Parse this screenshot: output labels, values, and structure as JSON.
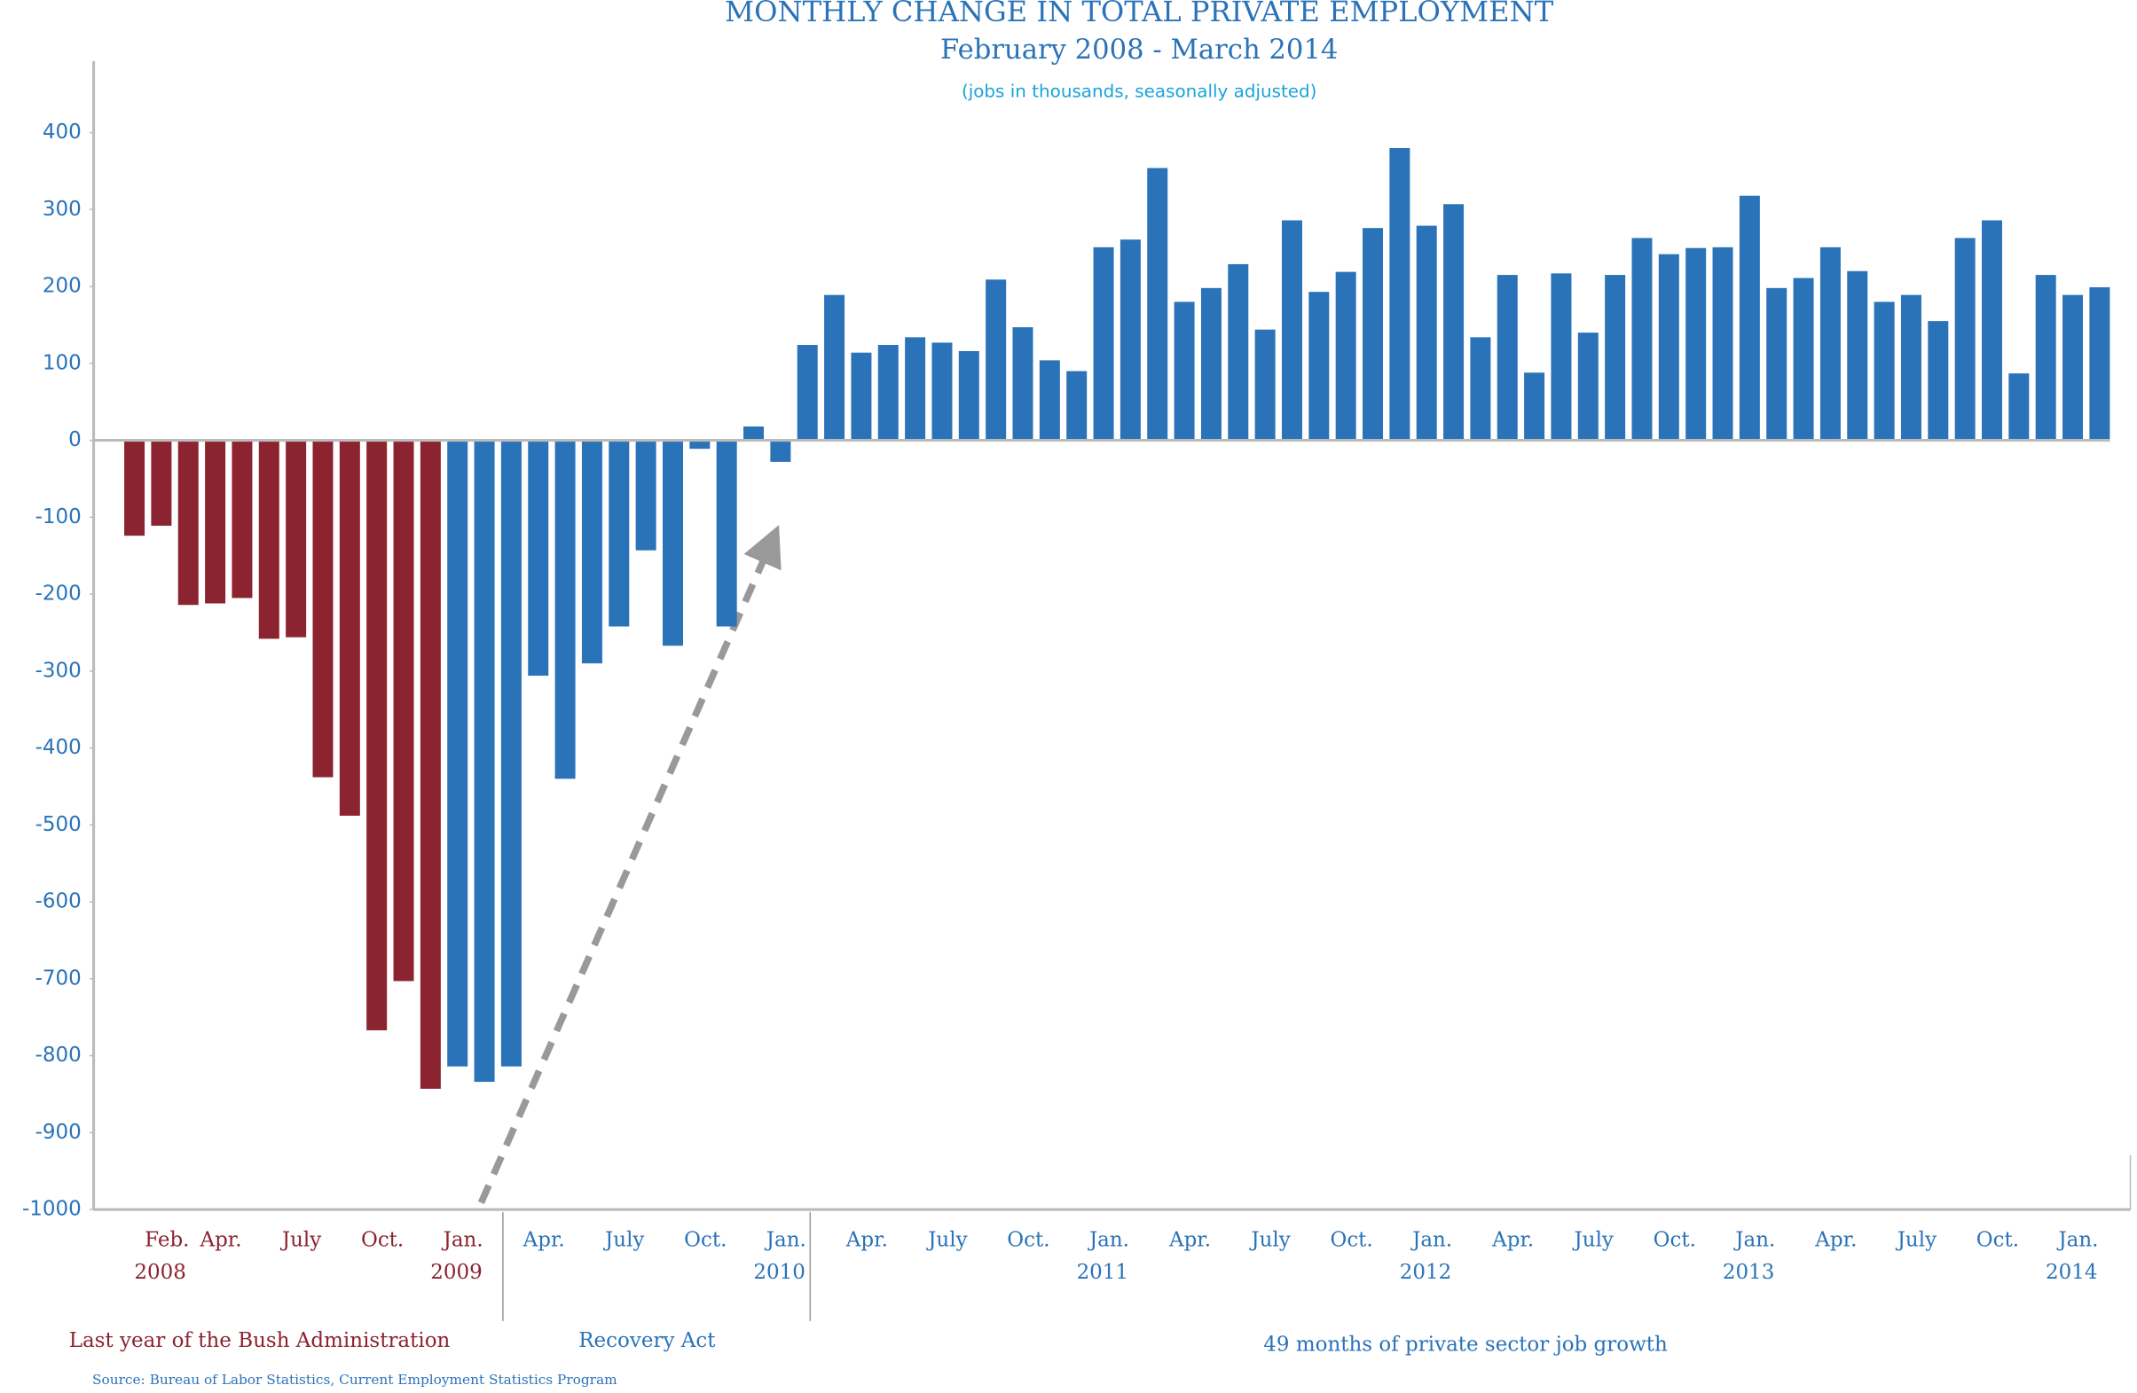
{
  "chart_data": {
    "type": "bar",
    "title": "MONTHLY CHANGE IN TOTAL PRIVATE EMPLOYMENT",
    "subtitle": "February 2008 - March 2014",
    "note": "(jobs in thousands, seasonally adjusted)",
    "categories": [
      "Feb.",
      null,
      "Apr.",
      null,
      null,
      "July",
      null,
      null,
      "Oct.",
      null,
      null,
      "Jan.",
      null,
      null,
      "Apr.",
      null,
      null,
      "July",
      null,
      null,
      "Oct.",
      null,
      null,
      "Jan.",
      null,
      null,
      "Apr.",
      null,
      null,
      "July",
      null,
      null,
      "Oct.",
      null,
      null,
      "Jan.",
      null,
      null,
      "Apr.",
      null,
      null,
      "July",
      null,
      null,
      "Oct.",
      null,
      null,
      "Jan.",
      null,
      null,
      "Apr.",
      null,
      null,
      "July",
      null,
      null,
      "Oct.",
      null,
      null,
      "Jan.",
      null,
      null,
      "Apr.",
      null,
      null,
      "July",
      null,
      null,
      "Oct.",
      null,
      null,
      "Jan.",
      null,
      null
    ],
    "category_years": [
      "2008",
      null,
      null,
      null,
      null,
      null,
      null,
      null,
      null,
      null,
      null,
      "2009",
      null,
      null,
      null,
      null,
      null,
      null,
      null,
      null,
      null,
      null,
      null,
      "2010",
      null,
      null,
      null,
      null,
      null,
      null,
      null,
      null,
      null,
      null,
      null,
      "2011",
      null,
      null,
      null,
      null,
      null,
      null,
      null,
      null,
      null,
      null,
      null,
      "2012",
      null,
      null,
      null,
      null,
      null,
      null,
      null,
      null,
      null,
      null,
      null,
      "2013",
      null,
      null,
      null,
      null,
      null,
      null,
      null,
      null,
      null,
      null,
      null,
      "2014",
      null,
      null
    ],
    "values": [
      -124,
      -111,
      -214,
      -212,
      -205,
      -258,
      -256,
      -438,
      -488,
      -767,
      -703,
      -843,
      -814,
      -834,
      -814,
      -306,
      -440,
      -290,
      -242,
      -143,
      -267,
      -11,
      -242,
      18,
      -28,
      124,
      189,
      114,
      124,
      134,
      127,
      116,
      209,
      147,
      104,
      90,
      251,
      261,
      354,
      180,
      198,
      229,
      144,
      286,
      193,
      219,
      276,
      380,
      279,
      307,
      134,
      215,
      88,
      217,
      140,
      215,
      263,
      242,
      250,
      251,
      318,
      198,
      211,
      251,
      220,
      180,
      189,
      155,
      263,
      286,
      87,
      215,
      189,
      199
    ],
    "colors": [
      "#8c2330",
      "#8c2330",
      "#8c2330",
      "#8c2330",
      "#8c2330",
      "#8c2330",
      "#8c2330",
      "#8c2330",
      "#8c2330",
      "#8c2330",
      "#8c2330",
      "#8c2330",
      "#2a73b8",
      "#2a73b8",
      "#2a73b8",
      "#2a73b8",
      "#2a73b8",
      "#2a73b8",
      "#2a73b8",
      "#2a73b8",
      "#2a73b8",
      "#2a73b8",
      "#2a73b8",
      "#2a73b8",
      "#2a73b8",
      "#2a73b8",
      "#2a73b8",
      "#2a73b8",
      "#2a73b8",
      "#2a73b8",
      "#2a73b8",
      "#2a73b8",
      "#2a73b8",
      "#2a73b8",
      "#2a73b8",
      "#2a73b8",
      "#2a73b8",
      "#2a73b8",
      "#2a73b8",
      "#2a73b8",
      "#2a73b8",
      "#2a73b8",
      "#2a73b8",
      "#2a73b8",
      "#2a73b8",
      "#2a73b8",
      "#2a73b8",
      "#2a73b8",
      "#2a73b8",
      "#2a73b8",
      "#2a73b8",
      "#2a73b8",
      "#2a73b8",
      "#2a73b8",
      "#2a73b8",
      "#2a73b8",
      "#2a73b8",
      "#2a73b8",
      "#2a73b8",
      "#2a73b8",
      "#2a73b8",
      "#2a73b8",
      "#2a73b8",
      "#2a73b8",
      "#2a73b8",
      "#2a73b8",
      "#2a73b8",
      "#2a73b8",
      "#2a73b8",
      "#2a73b8",
      "#2a73b8",
      "#2a73b8",
      "#2a73b8",
      "#2a73b8"
    ],
    "ylim": [
      -1000,
      450
    ],
    "yticks": [
      400,
      300,
      200,
      100,
      0,
      -100,
      -200,
      -300,
      -400,
      -500,
      -600,
      -700,
      -800,
      -900,
      -1000
    ],
    "annotations": [
      {
        "text": "Last year of the Bush Administration",
        "color": "#8c2330"
      },
      {
        "text": "Recovery Act",
        "color": "#2a73b8"
      },
      {
        "text": "49 months of private sector job growth",
        "color": "#2a73b8"
      }
    ],
    "source": "Source: Bureau of Labor Statistics, Current Employment Statistics Program"
  }
}
